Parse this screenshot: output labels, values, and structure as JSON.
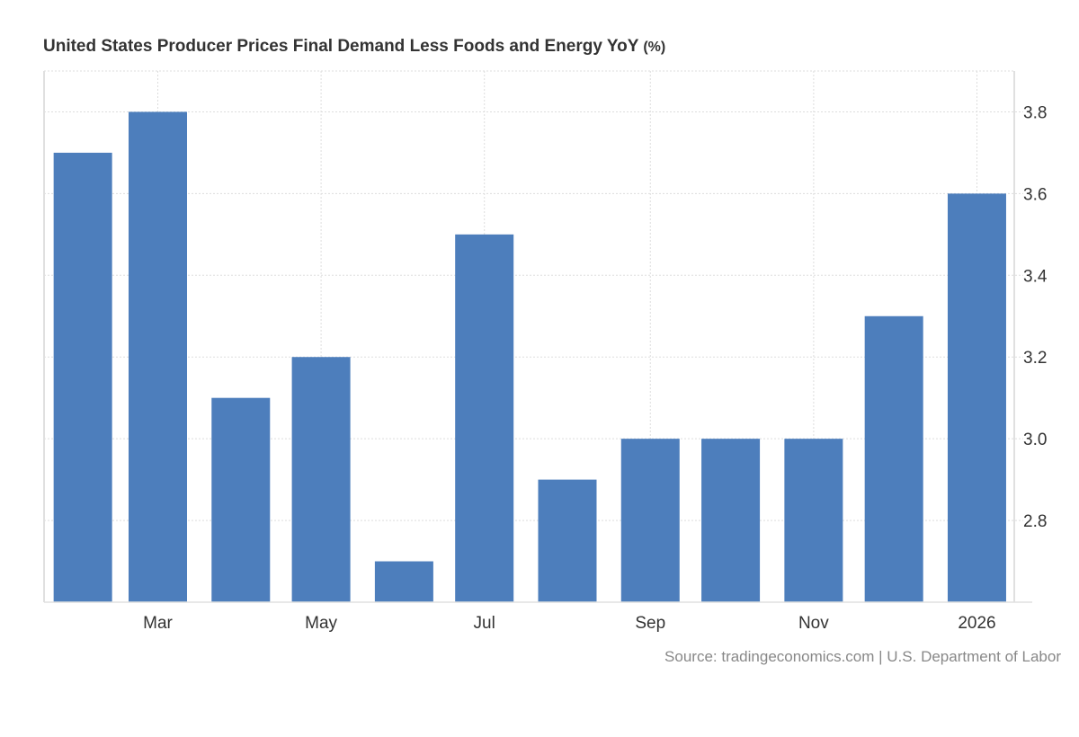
{
  "chart_data": {
    "type": "bar",
    "title": "United States Producer Prices Final Demand Less Foods and Energy YoY",
    "unit": "(%)",
    "categories": [
      "2025-02",
      "2025-03",
      "2025-04",
      "2025-05",
      "2025-06",
      "2025-07",
      "2025-08",
      "2025-09",
      "2025-10",
      "2025-11",
      "2025-12",
      "2026-01"
    ],
    "values": [
      3.7,
      3.8,
      3.1,
      3.2,
      2.7,
      3.5,
      2.9,
      3.0,
      3.0,
      3.0,
      3.3,
      3.6
    ],
    "x_ticks": [
      {
        "date": "2025-03",
        "label": "Mar"
      },
      {
        "date": "2025-05",
        "label": "May"
      },
      {
        "date": "2025-07",
        "label": "Jul"
      },
      {
        "date": "2025-09",
        "label": "Sep"
      },
      {
        "date": "2025-11",
        "label": "Nov"
      },
      {
        "date": "2026-01",
        "label": "2026"
      }
    ],
    "y_ticks": [
      "2.8",
      "3.0",
      "3.2",
      "3.4",
      "3.6",
      "3.8"
    ],
    "ylim": [
      2.6,
      3.9
    ],
    "y_axis_side": "right",
    "grid": true,
    "bar_color": "#4d7ebc",
    "source": "Source: tradingeconomics.com | U.S. Department of Labor"
  }
}
